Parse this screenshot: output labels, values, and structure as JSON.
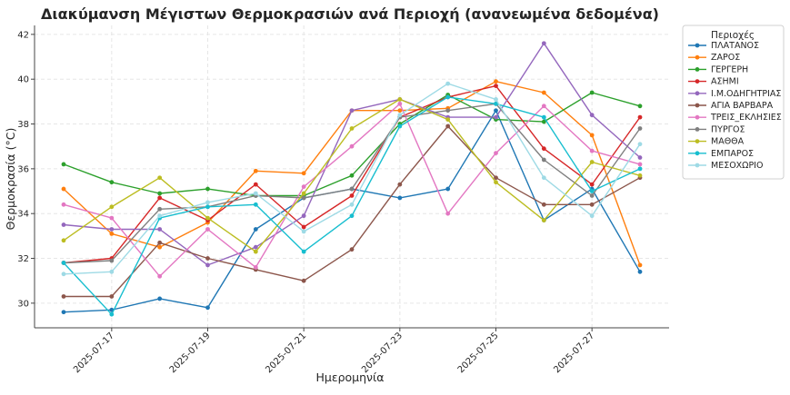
{
  "chart_data": {
    "type": "line",
    "title": "Διακύμανση Μέγιστων Θερμοκρασιών ανά Περιοχή (ανανεωμένα δεδομένα)",
    "xlabel": "Ημερομηνία",
    "ylabel": "Θερμοκρασία (°C)",
    "legend_title": "Περιοχές",
    "legend_position": "right",
    "grid": true,
    "ylim": [
      28.9,
      42.4
    ],
    "yticks": [
      30,
      32,
      34,
      36,
      38,
      40,
      42
    ],
    "xticks": [
      "2025-07-17",
      "2025-07-19",
      "2025-07-21",
      "2025-07-23",
      "2025-07-25",
      "2025-07-27"
    ],
    "x": [
      "2025-07-16",
      "2025-07-17",
      "2025-07-18",
      "2025-07-19",
      "2025-07-20",
      "2025-07-21",
      "2025-07-22",
      "2025-07-23",
      "2025-07-24",
      "2025-07-25",
      "2025-07-26",
      "2025-07-27",
      "2025-07-28"
    ],
    "series": [
      {
        "name": "ΠΛΑΤΑΝΟΣ",
        "color": "#1f77b4",
        "values": [
          29.6,
          29.7,
          30.2,
          29.8,
          33.3,
          34.7,
          35.1,
          34.7,
          35.1,
          38.6,
          33.7,
          35.1,
          31.4
        ]
      },
      {
        "name": "ΖΑΡΟΣ",
        "color": "#ff7f0e",
        "values": [
          35.1,
          33.1,
          32.5,
          33.6,
          35.9,
          35.8,
          38.6,
          38.6,
          38.7,
          39.9,
          39.4,
          37.5,
          31.7
        ]
      },
      {
        "name": "ΓΕΡΓΕΡΗ",
        "color": "#2ca02c",
        "values": [
          36.2,
          35.4,
          34.9,
          35.1,
          34.8,
          34.8,
          35.7,
          38.0,
          39.3,
          38.2,
          38.1,
          39.4,
          38.8
        ]
      },
      {
        "name": "ΑΣΗΜΙ",
        "color": "#d62728",
        "values": [
          31.8,
          32.0,
          34.7,
          33.7,
          35.3,
          33.4,
          34.8,
          38.3,
          39.2,
          39.7,
          36.9,
          35.3,
          38.3
        ]
      },
      {
        "name": "Ι.Μ.ΟΔΗΓΗΤΡΙΑΣ",
        "color": "#9467bd",
        "values": [
          33.5,
          33.3,
          33.3,
          31.7,
          32.5,
          33.9,
          38.6,
          39.1,
          38.3,
          38.3,
          41.6,
          38.4,
          36.5
        ]
      },
      {
        "name": "ΑΓΙΑ ΒΑΡΒΑΡΑ",
        "color": "#8c564b",
        "values": [
          30.3,
          30.3,
          32.7,
          32.0,
          31.5,
          31.0,
          32.4,
          35.3,
          37.9,
          35.6,
          34.4,
          34.4,
          35.6
        ]
      },
      {
        "name": "ΤΡΕΙΣ_ΕΚΛΗΣΙΕΣ",
        "color": "#e377c2",
        "values": [
          34.4,
          33.8,
          31.2,
          33.3,
          31.6,
          35.2,
          37.0,
          38.9,
          34.0,
          36.7,
          38.8,
          36.8,
          36.2
        ]
      },
      {
        "name": "ΠΥΡΓΟΣ",
        "color": "#7f7f7f",
        "values": [
          31.8,
          31.9,
          34.2,
          34.3,
          34.8,
          34.7,
          35.1,
          38.3,
          38.6,
          38.9,
          36.4,
          34.8,
          37.8
        ]
      },
      {
        "name": "ΜΑΘΘΑ",
        "color": "#bcbd22",
        "values": [
          32.8,
          34.3,
          35.6,
          33.8,
          32.3,
          34.9,
          37.8,
          39.1,
          38.2,
          35.4,
          33.7,
          36.3,
          35.7
        ]
      },
      {
        "name": "ΕΜΠΑΡΟΣ",
        "color": "#17becf",
        "values": [
          31.8,
          29.5,
          33.8,
          34.3,
          34.4,
          32.3,
          33.9,
          37.9,
          39.2,
          38.9,
          38.3,
          35.0,
          36.0
        ]
      },
      {
        "name": "ΜΕΣΟΧΩΡΙΟ",
        "color": "#9edae5",
        "values": [
          31.3,
          31.4,
          33.9,
          34.5,
          34.9,
          33.2,
          34.4,
          38.4,
          39.8,
          39.1,
          35.6,
          33.9,
          37.1
        ]
      }
    ]
  }
}
